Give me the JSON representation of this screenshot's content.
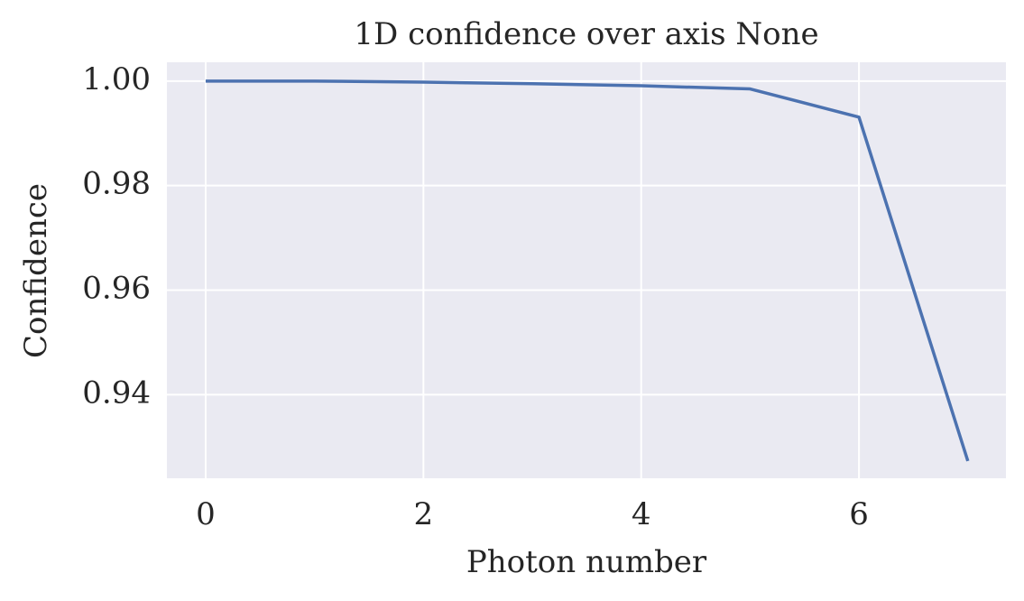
{
  "chart_data": {
    "type": "line",
    "title": "1D confidence over axis None",
    "x_label": "Photon number",
    "y_label": "Confidence",
    "x": [
      0,
      1,
      2,
      3,
      4,
      5,
      6,
      7
    ],
    "series": [
      {
        "name": "Confidence",
        "color": "#4c72b0",
        "values": [
          1.0,
          1.0,
          0.9998,
          0.9995,
          0.9991,
          0.9985,
          0.9931,
          0.9273
        ]
      }
    ],
    "xlim": [
      -0.356,
      7.35
    ],
    "ylim": [
      0.924,
      1.0036
    ],
    "xticks": [
      0,
      2,
      4,
      6
    ],
    "yticks": [
      0.94,
      0.96,
      0.98,
      {
        "value": 1,
        "label": "1.00"
      }
    ],
    "grid": true,
    "background": "#eaeaf2"
  }
}
